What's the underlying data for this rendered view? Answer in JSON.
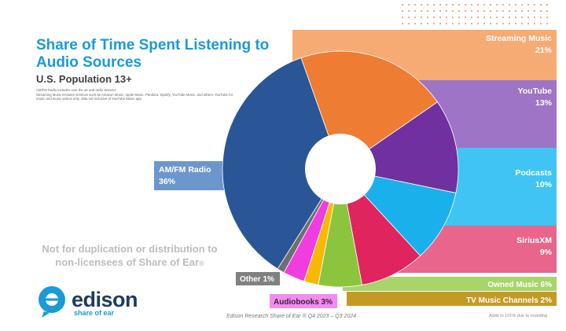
{
  "header": {
    "title": "Share of Time Spent Listening to Audio Sources",
    "subtitle": "U.S. Population 13+",
    "note_1": "AM/FM Radio includes over the air and radio streams",
    "note_2": "Streaming Music includes services such as Amazon Music, Apple Music, Pandora, Spotify, YouTube Music, and others; YouTube for music and music videos only; data not inclusive of YouTube Music app"
  },
  "disclaimer": {
    "line1": "Not for duplication or distribution to",
    "line2": "non-licensees of Share of Ear",
    "reg": "®"
  },
  "logo": {
    "word": "edison",
    "sub": "share of ear"
  },
  "footer": {
    "source": "Edison Research Share of Ear ® Q4 2023 – Q3 2024",
    "rounding": "Adds to 101% due to rounding"
  },
  "chart_data": {
    "type": "pie",
    "variant": "donut",
    "title": "Share of Time Spent Listening to Audio Sources",
    "subtitle": "U.S. Population 13+",
    "categories": [
      "Streaming Music",
      "YouTube",
      "Podcasts",
      "SiriusXM",
      "Owned Music",
      "TV Music Channels",
      "Audiobooks",
      "Other",
      "AM/FM Radio"
    ],
    "values": [
      21,
      13,
      10,
      9,
      6,
      2,
      3,
      1,
      36
    ],
    "value_labels": [
      "21%",
      "13%",
      "10%",
      "9%",
      "6%",
      "2%",
      "3%",
      "1%",
      "36%"
    ],
    "colors": {
      "Streaming Music": "#ee7c32",
      "YouTube": "#7030a0",
      "Podcasts": "#1ab0ec",
      "SiriusXM": "#e0245e",
      "Owned Music": "#8cc53d",
      "TV Music Channels": "#f7b900",
      "Audiobooks": "#ef3ddf",
      "Other": "#6d6e71",
      "AM/FM Radio": "#2a5597"
    },
    "band_colors": {
      "Streaming Music": "#f6ab74",
      "YouTube": "#9d74c6",
      "Podcasts": "#3fc4f4",
      "SiriusXM": "#e9658b",
      "Owned Music": "#a8d46a",
      "TV Music Channels": "#c39a24",
      "Audiobooks": "#f48cf0",
      "Other": "#808080",
      "AM/FM Radio": "#6c97cd"
    }
  }
}
